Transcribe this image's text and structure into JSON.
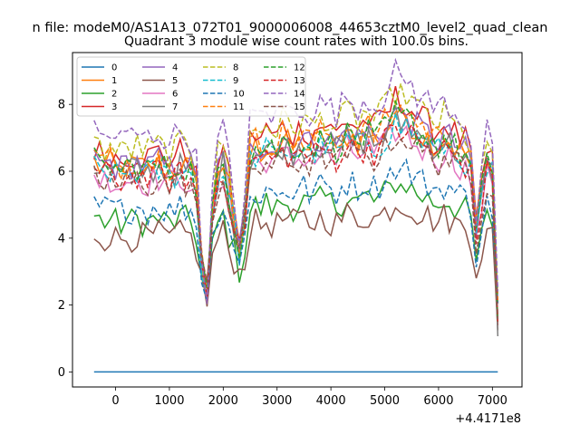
{
  "chart_data": {
    "type": "line",
    "suptitle": "n file: modeM0/AS1A13_072T01_9000006008_44653cztM0_level2_quad_clean",
    "title": "Quadrant 3 module wise count rates with 100.0s bins.",
    "xlabel": "",
    "ylabel": "",
    "x_offset_label": "+4.4171e8",
    "xlim": [
      -800,
      7550
    ],
    "ylim": [
      -0.45,
      9.55
    ],
    "xticks": [
      0,
      1000,
      2000,
      3000,
      4000,
      5000,
      6000,
      7000
    ],
    "yticks": [
      0,
      2,
      4,
      6,
      8
    ],
    "grid": false,
    "legend": {
      "placement": "top-left",
      "columns": 4
    },
    "x_start": -400,
    "x_step": 100,
    "base_profile": [
      6.2,
      6.05,
      6.0,
      6.1,
      5.95,
      5.9,
      6.05,
      6.0,
      6.1,
      6.0,
      5.95,
      6.05,
      6.1,
      6.0,
      5.9,
      6.0,
      6.1,
      6.05,
      5.95,
      5.4,
      3.2,
      2.3,
      4.6,
      5.9,
      6.2,
      5.4,
      4.5,
      3.6,
      4.6,
      6.4,
      6.6,
      6.5,
      6.7,
      6.6,
      6.5,
      6.8,
      6.7,
      6.6,
      6.7,
      6.8,
      6.6,
      6.7,
      6.8,
      6.9,
      6.7,
      6.6,
      6.8,
      7.0,
      6.9,
      6.8,
      6.9,
      7.0,
      6.8,
      6.9,
      7.1,
      7.3,
      7.6,
      7.4,
      7.5,
      7.3,
      7.1,
      7.0,
      6.9,
      6.8,
      6.7,
      6.9,
      6.8,
      6.6,
      6.5,
      6.4,
      6.0,
      4.0,
      5.2,
      6.1,
      6.0,
      1.3
    ],
    "series": [
      {
        "name": "0",
        "color": "#1f77b4",
        "dash": "solid",
        "level": 0.0
      },
      {
        "name": "1",
        "color": "#ff7f0e",
        "dash": "solid",
        "level": 6.5
      },
      {
        "name": "2",
        "color": "#2ca02c",
        "dash": "solid",
        "level": 4.8
      },
      {
        "name": "3",
        "color": "#d62728",
        "dash": "solid",
        "level": 6.9
      },
      {
        "name": "4",
        "color": "#9467bd",
        "dash": "solid",
        "level": 6.6
      },
      {
        "name": "5",
        "color": "#8c564b",
        "dash": "solid",
        "level": 4.3
      },
      {
        "name": "6",
        "color": "#e377c2",
        "dash": "solid",
        "level": 6.1
      },
      {
        "name": "7",
        "color": "#7f7f7f",
        "dash": "solid",
        "level": 6.4
      },
      {
        "name": "8",
        "color": "#bcbd22",
        "dash": "dashed",
        "level": 7.1
      },
      {
        "name": "9",
        "color": "#17becf",
        "dash": "dashed",
        "level": 6.3
      },
      {
        "name": "10",
        "color": "#1f77b4",
        "dash": "dashed",
        "level": 5.2
      },
      {
        "name": "11",
        "color": "#ff7f0e",
        "dash": "dashed",
        "level": 6.7
      },
      {
        "name": "12",
        "color": "#2ca02c",
        "dash": "dashed",
        "level": 6.5
      },
      {
        "name": "13",
        "color": "#d62728",
        "dash": "dashed",
        "level": 6.2
      },
      {
        "name": "14",
        "color": "#9467bd",
        "dash": "dashed",
        "level": 7.5
      },
      {
        "name": "15",
        "color": "#8c564b",
        "dash": "dashed",
        "level": 6.0
      }
    ]
  }
}
